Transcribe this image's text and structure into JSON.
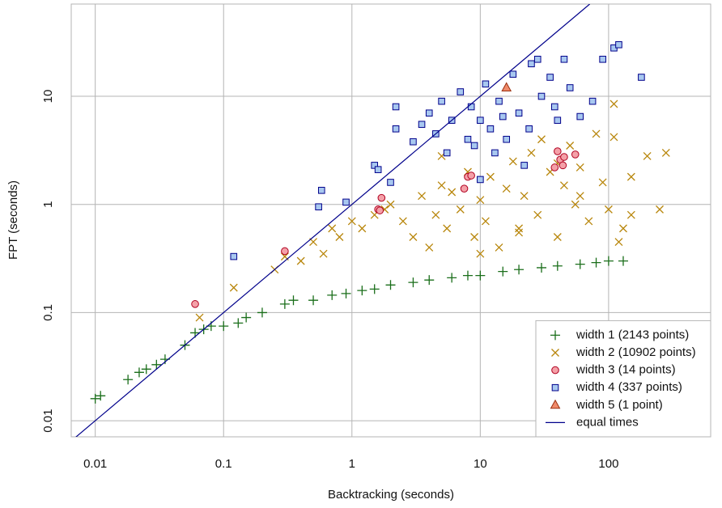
{
  "chart_data": {
    "type": "scatter",
    "xlabel": "Backtracking (seconds)",
    "ylabel": "FPT (seconds)",
    "log_x": true,
    "log_y": true,
    "grid": true,
    "legend": "lower right",
    "xlim": [
      0.0065,
      624
    ],
    "ylim": [
      0.0071,
      71.3
    ],
    "xticks": [
      0.01,
      0.1,
      1,
      10,
      100
    ],
    "yticks": [
      0.01,
      0.1,
      1,
      10
    ],
    "series": [
      {
        "name": "width 1 (2143 points)",
        "marker": "plus",
        "color": "#1a6e1a",
        "x": [
          0.01,
          0.011,
          0.018,
          0.022,
          0.025,
          0.03,
          0.035,
          0.05,
          0.06,
          0.07,
          0.08,
          0.1,
          0.13,
          0.15,
          0.2,
          0.3,
          0.35,
          0.5,
          0.7,
          0.9,
          1.2,
          1.5,
          2,
          3,
          4,
          6,
          8,
          10,
          15,
          20,
          30,
          40,
          60,
          80,
          100,
          130
        ],
        "values": [
          0.016,
          0.017,
          0.024,
          0.028,
          0.03,
          0.033,
          0.037,
          0.05,
          0.065,
          0.07,
          0.075,
          0.075,
          0.08,
          0.09,
          0.1,
          0.12,
          0.13,
          0.13,
          0.145,
          0.15,
          0.16,
          0.165,
          0.18,
          0.19,
          0.2,
          0.21,
          0.22,
          0.22,
          0.24,
          0.25,
          0.26,
          0.27,
          0.28,
          0.29,
          0.3,
          0.3
        ]
      },
      {
        "name": "width 2 (10902 points)",
        "marker": "cross",
        "color": "#b8860b",
        "x": [
          0.065,
          0.12,
          0.25,
          0.3,
          0.4,
          0.5,
          0.6,
          0.7,
          0.8,
          1,
          1.2,
          1.5,
          1.8,
          2,
          2.5,
          3,
          3.5,
          4,
          4.5,
          5,
          5.5,
          6,
          7,
          8,
          9,
          10,
          11,
          12,
          14,
          16,
          18,
          20,
          22,
          25,
          28,
          30,
          35,
          40,
          45,
          50,
          55,
          60,
          70,
          80,
          90,
          100,
          110,
          130,
          150,
          200,
          250,
          280,
          110,
          120,
          40,
          10,
          5,
          20,
          60,
          150
        ],
        "values": [
          0.09,
          0.17,
          0.25,
          0.33,
          0.3,
          0.45,
          0.35,
          0.6,
          0.5,
          0.7,
          0.6,
          0.8,
          0.9,
          1,
          0.7,
          0.5,
          1.2,
          0.4,
          0.8,
          1.5,
          0.6,
          1.3,
          0.9,
          2,
          0.5,
          1.1,
          0.7,
          1.8,
          0.4,
          1.4,
          2.5,
          0.6,
          1.2,
          3,
          0.8,
          4,
          2,
          0.5,
          1.5,
          3.5,
          1,
          2.2,
          0.7,
          4.5,
          1.6,
          0.9,
          8.5,
          0.6,
          1.8,
          2.8,
          0.9,
          3,
          4.2,
          0.45,
          2.4,
          0.35,
          2.8,
          0.55,
          1.2,
          0.8
        ]
      },
      {
        "name": "width 3 (14 points)",
        "marker": "circle",
        "color": "#f4a0a8",
        "stroke": "#b00020",
        "x": [
          0.06,
          0.3,
          1.6,
          1.65,
          1.7,
          7.5,
          8,
          8.5,
          40,
          42,
          44,
          45,
          55,
          38
        ],
        "values": [
          0.12,
          0.37,
          0.9,
          0.88,
          1.15,
          1.4,
          1.8,
          1.85,
          3.1,
          2.6,
          2.3,
          2.75,
          2.9,
          2.2
        ]
      },
      {
        "name": "width 4 (337 points)",
        "marker": "square",
        "color": "#a8c8f0",
        "stroke": "#00008b",
        "x": [
          0.12,
          0.55,
          0.58,
          0.9,
          1.5,
          1.6,
          2,
          2.2,
          2.2,
          3,
          3.5,
          4,
          4.5,
          5,
          5.5,
          6,
          7,
          8,
          8.5,
          9,
          10,
          10,
          11,
          12,
          13,
          14,
          15,
          16,
          18,
          20,
          22,
          24,
          25,
          28,
          30,
          35,
          38,
          40,
          45,
          50,
          60,
          75,
          90,
          110,
          120,
          180
        ],
        "values": [
          0.33,
          0.95,
          1.35,
          1.05,
          2.3,
          2.1,
          1.6,
          8,
          5,
          3.8,
          5.5,
          7,
          4.5,
          9,
          3,
          6,
          11,
          4,
          8,
          3.5,
          6,
          1.7,
          13,
          5,
          3,
          9,
          6.5,
          4,
          16,
          7,
          2.3,
          5,
          20,
          22,
          10,
          15,
          8,
          6,
          22,
          12,
          6.5,
          9,
          22,
          28,
          30,
          15
        ]
      },
      {
        "name": "width 5 (1 point)",
        "marker": "triangle",
        "color": "#f08a6a",
        "stroke": "#9a3010",
        "x": [
          16
        ],
        "values": [
          12
        ]
      },
      {
        "name": "equal times",
        "marker": "line",
        "color": "#00008b",
        "x": [
          0.0065,
          71.3
        ],
        "values": [
          0.0065,
          71.3
        ]
      }
    ]
  }
}
